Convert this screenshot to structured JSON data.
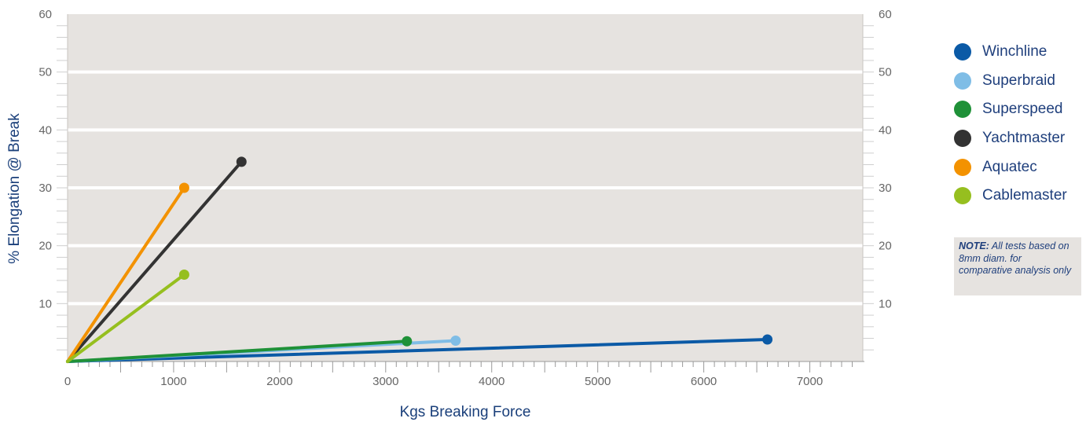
{
  "chart_data": {
    "type": "line",
    "title": "",
    "xlabel": "Kgs Breaking Force",
    "ylabel": "% Elongation @ Break",
    "xlim": [
      0,
      7500
    ],
    "ylim": [
      0,
      60
    ],
    "x_ticks": [
      "0",
      "1000",
      "2000",
      "3000",
      "4000",
      "5000",
      "6000",
      "7000"
    ],
    "y_ticks": [
      "10",
      "20",
      "30",
      "40",
      "50",
      "60"
    ],
    "right_y_ticks": [
      "10",
      "20",
      "30",
      "40",
      "50",
      "60"
    ],
    "grid": true,
    "legend_position": "right",
    "series": [
      {
        "name": "Winchline",
        "color": "#0b5aa6",
        "x": [
          0,
          6600
        ],
        "y": [
          0,
          3.8
        ]
      },
      {
        "name": "Superbraid",
        "color": "#7fbde6",
        "x": [
          0,
          3660
        ],
        "y": [
          0,
          3.6
        ]
      },
      {
        "name": "Superspeed",
        "color": "#1f9138",
        "x": [
          0,
          3200
        ],
        "y": [
          0,
          3.5
        ]
      },
      {
        "name": "Yachtmaster",
        "color": "#333333",
        "x": [
          0,
          1640
        ],
        "y": [
          0,
          34.5
        ]
      },
      {
        "name": "Aquatec",
        "color": "#f39200",
        "x": [
          0,
          1100
        ],
        "y": [
          0,
          30
        ]
      },
      {
        "name": "Cablemaster",
        "color": "#96bf1f",
        "x": [
          0,
          1100
        ],
        "y": [
          0,
          15
        ]
      }
    ],
    "note": {
      "label": "NOTE:",
      "text": "All tests based on 8mm diam. for comparative analysis only"
    }
  }
}
